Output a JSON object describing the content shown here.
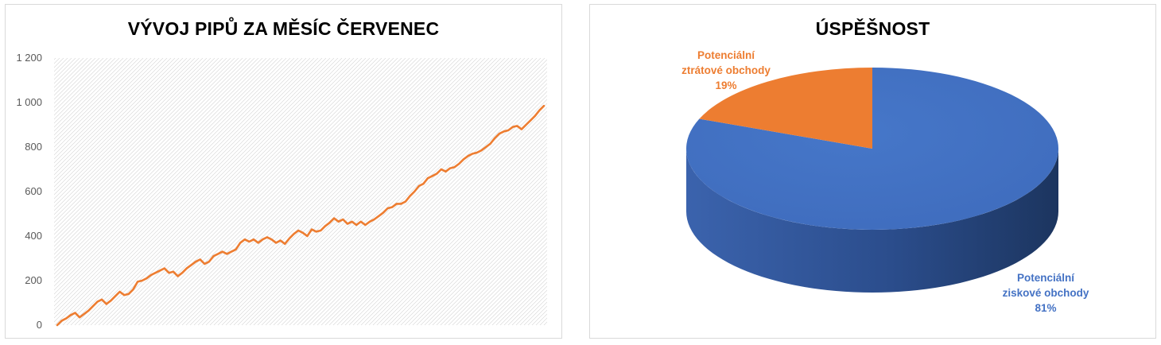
{
  "chart_data": [
    {
      "type": "line",
      "title": "VÝVOJ PIPŮ ZA MĚSÍC ČERVENEC",
      "xlabel": "",
      "ylabel": "",
      "ylim": [
        0,
        1200
      ],
      "y_ticks": [
        "0",
        "200",
        "400",
        "600",
        "800",
        "1 000",
        "1 200"
      ],
      "grid": "diagonal hatch background",
      "color": "#ed7d31",
      "series": [
        {
          "values": [
            0,
            20,
            30,
            45,
            55,
            35,
            50,
            65,
            85,
            105,
            115,
            95,
            110,
            130,
            150,
            135,
            140,
            160,
            195,
            200,
            210,
            225,
            235,
            245,
            255,
            235,
            240,
            220,
            235,
            255,
            270,
            285,
            295,
            275,
            285,
            310,
            320,
            330,
            320,
            330,
            340,
            370,
            385,
            375,
            385,
            370,
            385,
            395,
            385,
            370,
            380,
            365,
            390,
            410,
            425,
            415,
            400,
            430,
            420,
            425,
            445,
            460,
            480,
            465,
            475,
            455,
            465,
            450,
            465,
            450,
            465,
            475,
            490,
            505,
            525,
            530,
            545,
            545,
            555,
            580,
            600,
            625,
            635,
            660,
            670,
            680,
            700,
            690,
            705,
            710,
            725,
            745,
            760,
            770,
            775,
            785,
            800,
            815,
            840,
            860,
            870,
            875,
            890,
            895,
            880,
            900,
            920,
            940,
            965,
            985
          ]
        }
      ]
    },
    {
      "type": "pie",
      "title": "ÚSPĚŠNOST",
      "slices": [
        {
          "label_line1": "Potenciální",
          "label_line2": "ziskové obchody",
          "pct_text": "81%",
          "value": 81,
          "color": "#4472c4"
        },
        {
          "label_line1": "Potenciální",
          "label_line2": "ztrátové obchody",
          "pct_text": "19%",
          "value": 19,
          "color": "#ed7d31"
        }
      ]
    }
  ]
}
